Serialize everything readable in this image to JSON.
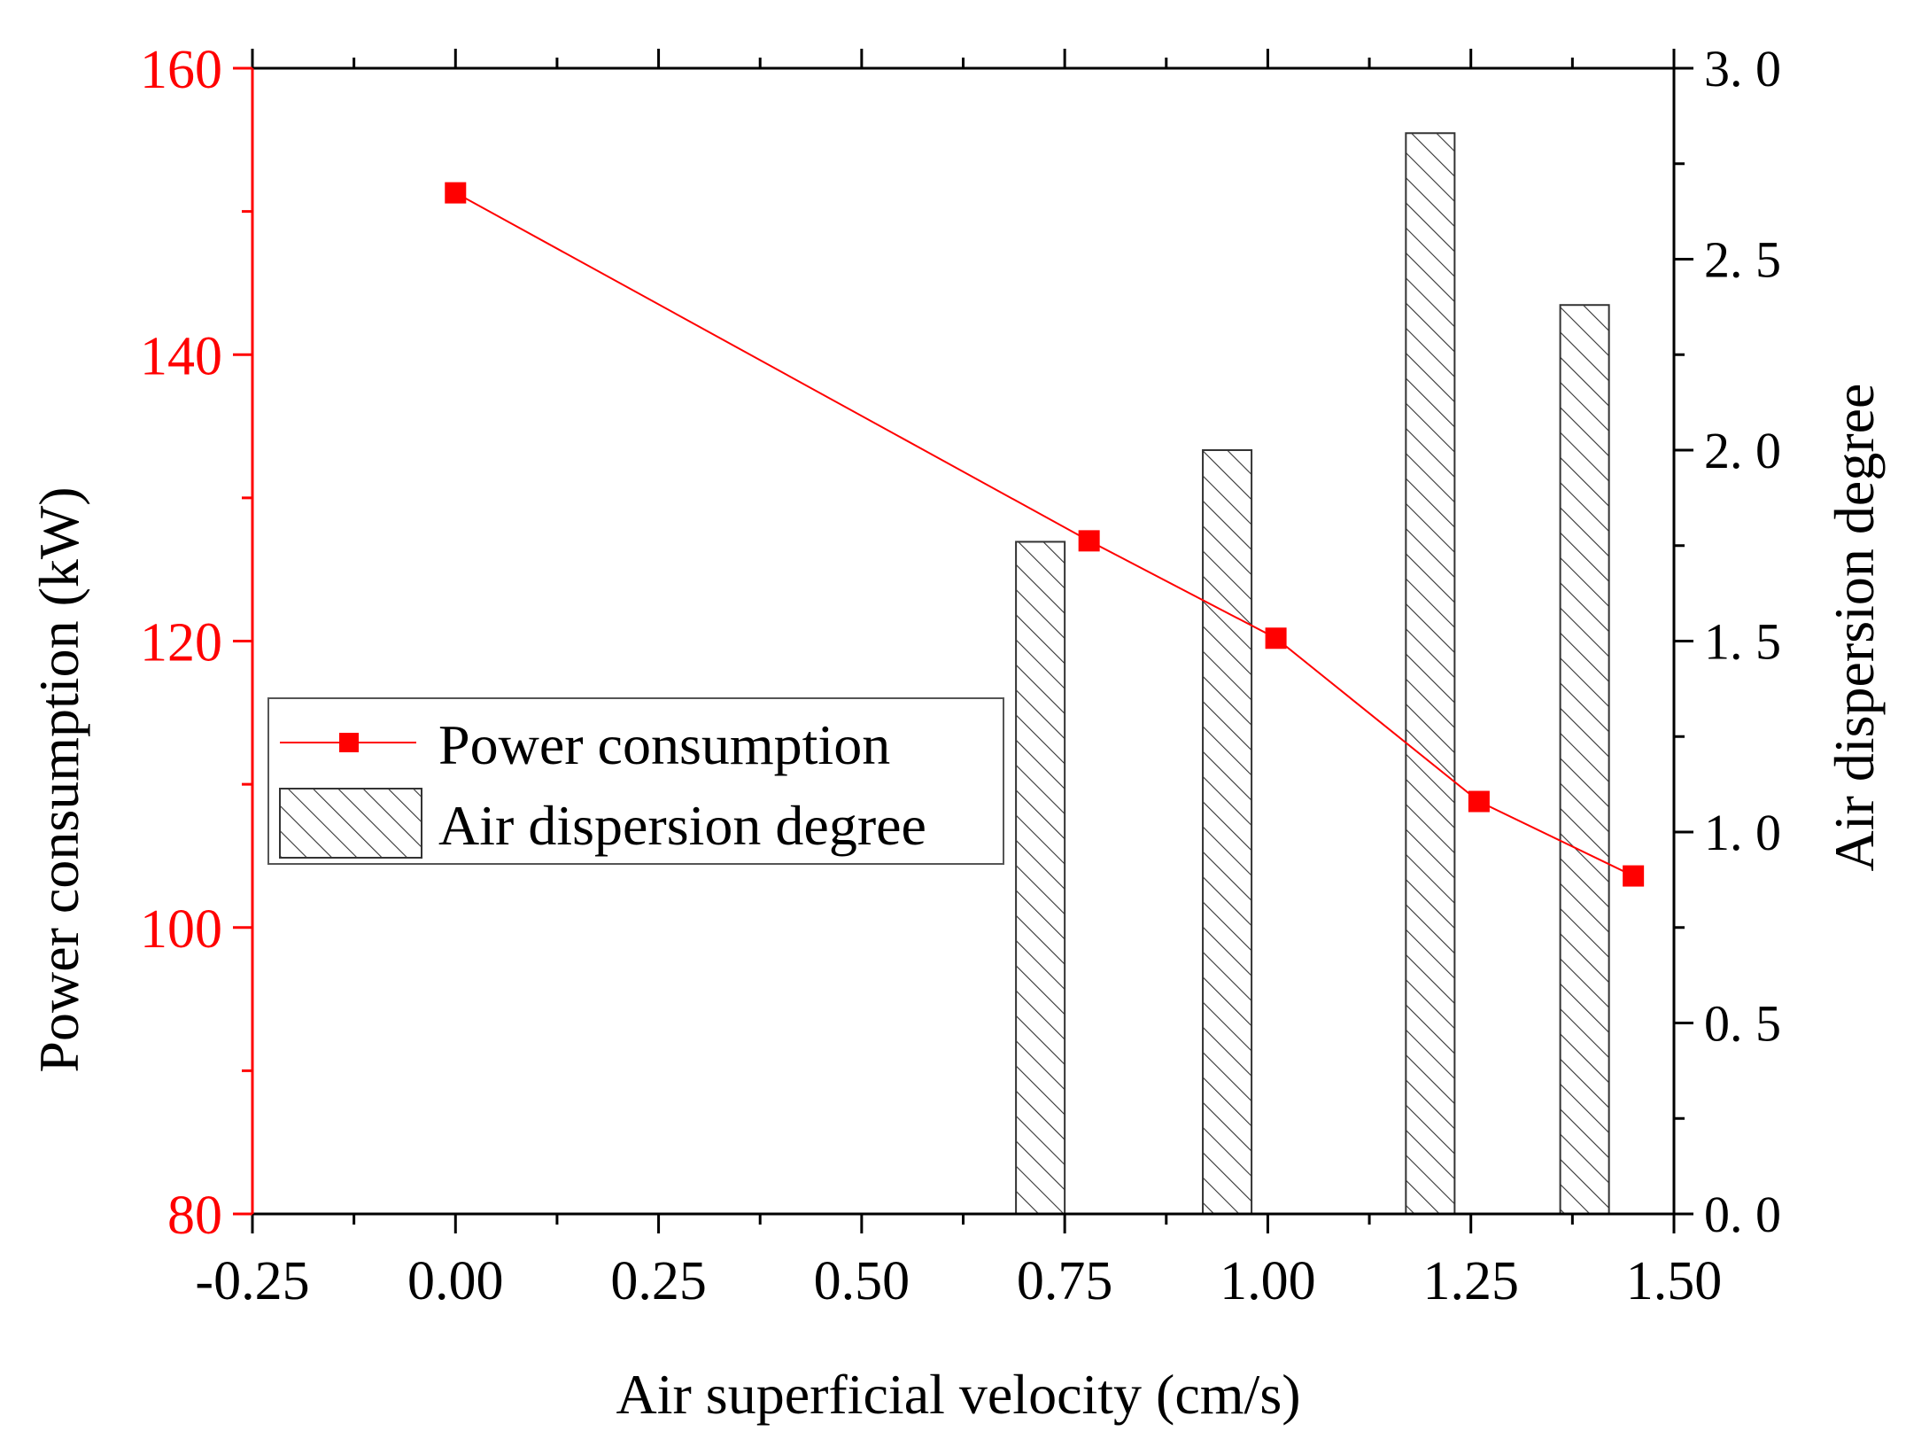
{
  "chart_data": {
    "type": "bar",
    "x_axis": {
      "label": "Air superficial velocity (cm/s)",
      "range": [
        -0.25,
        1.5
      ],
      "ticks": [
        -0.25,
        0.0,
        0.25,
        0.5,
        0.75,
        1.0,
        1.25,
        1.5
      ],
      "tick_labels": [
        "-0.25",
        "0.00",
        "0.25",
        "0.50",
        "0.75",
        "1.00",
        "1.25",
        "1.50"
      ]
    },
    "y_axis_left": {
      "label": "Power consumption (kW)",
      "range": [
        80,
        160
      ],
      "ticks": [
        80,
        100,
        120,
        140,
        160
      ],
      "tick_labels": [
        "80",
        "100",
        "120",
        "140",
        "160"
      ],
      "color": "#ff0000"
    },
    "y_axis_right": {
      "label": "Air dispersion degree",
      "range": [
        0.0,
        3.0
      ],
      "ticks": [
        0.0,
        0.5,
        1.0,
        1.5,
        2.0,
        2.5,
        3.0
      ],
      "tick_labels": [
        "0. 0",
        "0. 5",
        "1. 0",
        "1. 5",
        "2. 0",
        "2. 5",
        "3. 0"
      ],
      "color": "#000000"
    },
    "series": [
      {
        "name": "Power consumption",
        "type": "line",
        "axis": "left",
        "color": "#ff0000",
        "marker": "square",
        "x": [
          0.0,
          0.78,
          1.01,
          1.26,
          1.45
        ],
        "y": [
          151.3,
          127.0,
          120.2,
          108.8,
          103.6
        ]
      },
      {
        "name": "Air dispersion degree",
        "type": "bar",
        "axis": "right",
        "pattern": "hatched",
        "color": "#000000",
        "x": [
          0.72,
          0.95,
          1.2,
          1.39
        ],
        "y": [
          1.76,
          2.0,
          2.83,
          2.38
        ],
        "width": 0.06
      }
    ],
    "legend": {
      "position": "center-left",
      "entries": [
        "Power consumption",
        "Air dispersion degree"
      ]
    }
  }
}
